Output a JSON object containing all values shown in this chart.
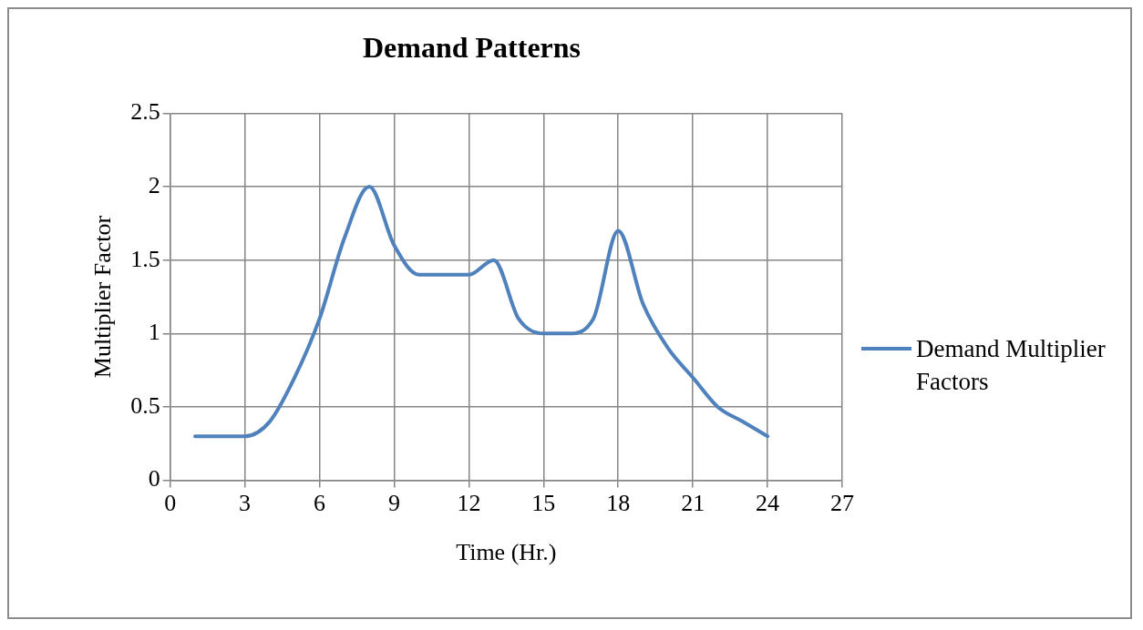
{
  "chart_data": {
    "type": "line",
    "title": "Demand Patterns",
    "xlabel": "Time (Hr.)",
    "ylabel": "Multiplier Factor",
    "x": [
      1,
      2,
      3,
      4,
      5,
      6,
      7,
      8,
      9,
      10,
      11,
      12,
      13,
      14,
      15,
      16,
      17,
      18,
      19,
      20,
      21,
      22,
      23,
      24
    ],
    "series": [
      {
        "name": "Demand Multiplier Factors",
        "color": "#4f81bd",
        "values": [
          0.3,
          0.3,
          0.3,
          0.4,
          0.7,
          1.1,
          1.65,
          2.0,
          1.6,
          1.4,
          1.4,
          1.4,
          1.5,
          1.1,
          1.0,
          1.0,
          1.1,
          1.7,
          1.2,
          0.9,
          0.7,
          0.5,
          0.4,
          0.3
        ]
      }
    ],
    "xlim": [
      0,
      27
    ],
    "xticks": [
      0,
      3,
      6,
      9,
      12,
      15,
      18,
      21,
      24,
      27
    ],
    "ylim": [
      0,
      2.5
    ],
    "yticks": [
      0,
      0.5,
      1,
      1.5,
      2,
      2.5
    ],
    "grid": true,
    "legend": "right",
    "marker": "none",
    "line_style": "solid"
  }
}
